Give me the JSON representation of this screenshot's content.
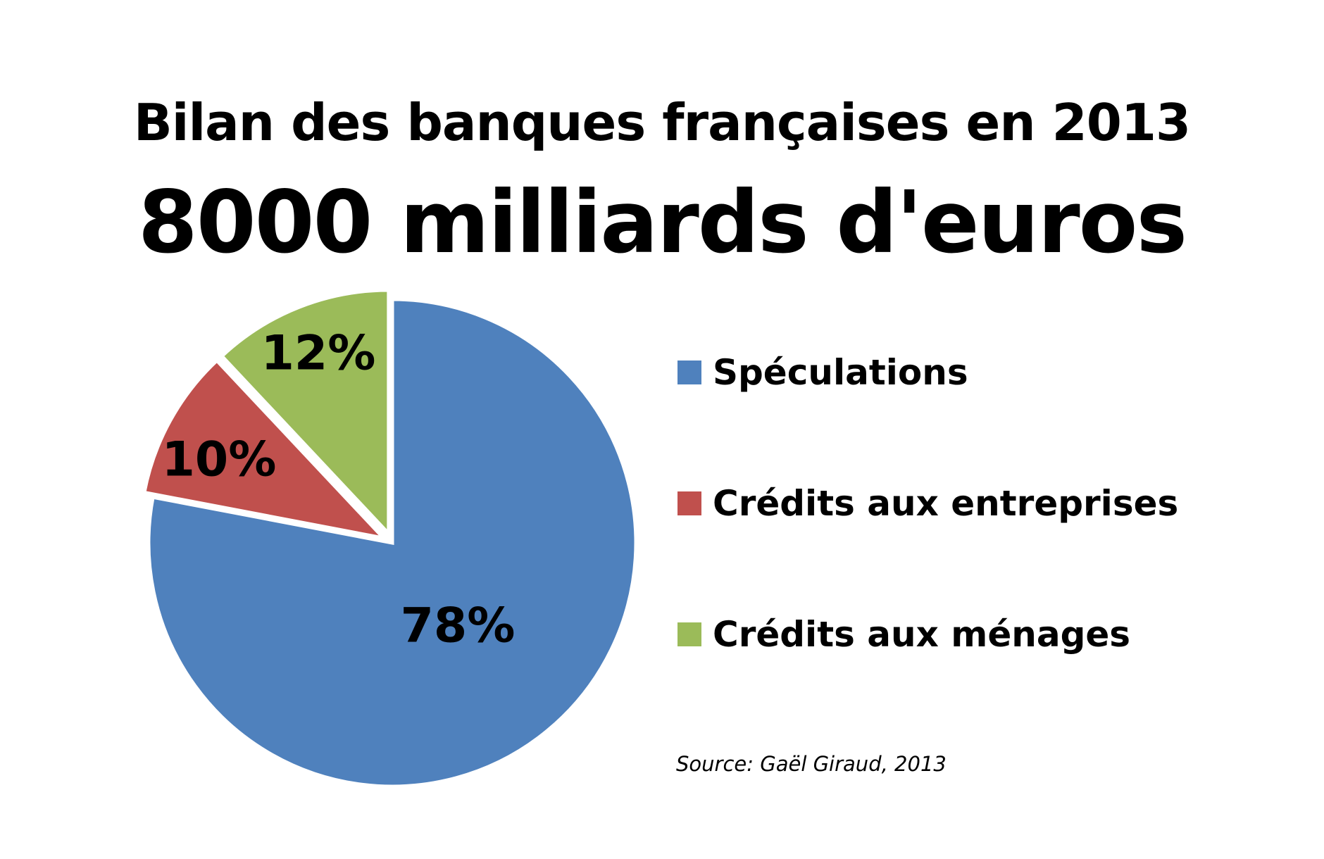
{
  "chart_data": {
    "type": "pie",
    "title": "Bilan des banques françaises en 2013",
    "subtitle": "8000 milliards d'euros",
    "slices": [
      {
        "label": "Spéculations",
        "value": 78,
        "data_label": "78%",
        "color": "#4F81BD",
        "exploded": false
      },
      {
        "label": "Crédits aux entreprises",
        "value": 10,
        "data_label": "10%",
        "color": "#C0504D",
        "exploded": true
      },
      {
        "label": "Crédits aux ménages",
        "value": 12,
        "data_label": "12%",
        "color": "#9BBB59",
        "exploded": true
      }
    ],
    "legend_position": "right",
    "source": "Source: Gaël Giraud, 2013"
  }
}
